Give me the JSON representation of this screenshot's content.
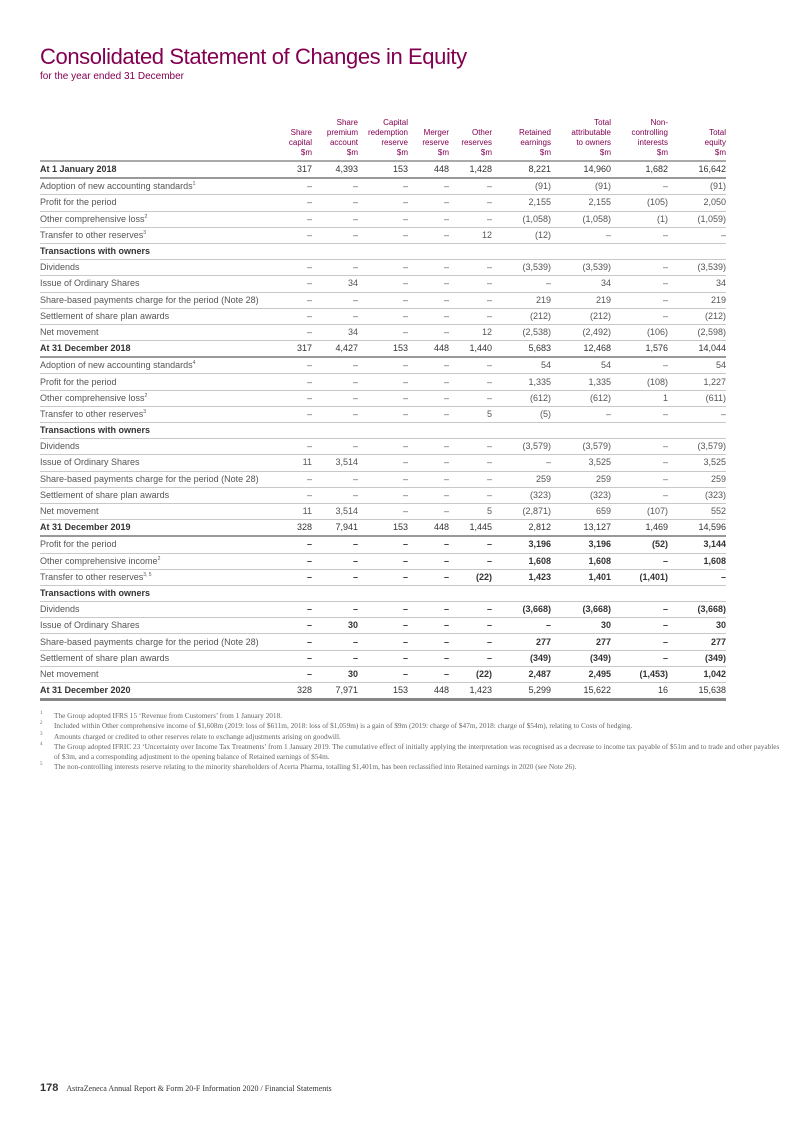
{
  "header": {
    "title": "Consolidated Statement of Changes in Equity",
    "subtitle": "for the year ended 31 December"
  },
  "columns": [
    [
      "Share",
      "capital",
      "$m"
    ],
    [
      "Share",
      "premium",
      "account",
      "$m"
    ],
    [
      "Capital",
      "redemption",
      "reserve",
      "$m"
    ],
    [
      "Merger",
      "reserve",
      "$m"
    ],
    [
      "Other",
      "reserves",
      "$m"
    ],
    [
      "Retained",
      "earnings",
      "$m"
    ],
    [
      "Total",
      "attributable",
      "to owners",
      "$m"
    ],
    [
      "Non-",
      "controlling",
      "interests",
      "$m"
    ],
    [
      "Total",
      "equity",
      "$m"
    ]
  ],
  "rows": [
    {
      "type": "total",
      "label": "At 1 January 2018",
      "sup": "",
      "values": [
        "317",
        "4,393",
        "153",
        "448",
        "1,428",
        "8,221",
        "14,960",
        "1,682",
        "16,642"
      ]
    },
    {
      "type": "row",
      "label": "Adoption of new accounting standards",
      "sup": "1",
      "values": [
        "–",
        "–",
        "–",
        "–",
        "–",
        "(91)",
        "(91)",
        "–",
        "(91)"
      ]
    },
    {
      "type": "row",
      "label": "Profit for the period",
      "sup": "",
      "values": [
        "–",
        "–",
        "–",
        "–",
        "–",
        "2,155",
        "2,155",
        "(105)",
        "2,050"
      ]
    },
    {
      "type": "row",
      "label": "Other comprehensive loss",
      "sup": "2",
      "values": [
        "–",
        "–",
        "–",
        "–",
        "–",
        "(1,058)",
        "(1,058)",
        "(1)",
        "(1,059)"
      ]
    },
    {
      "type": "row",
      "label": "Transfer to other reserves",
      "sup": "3",
      "values": [
        "–",
        "–",
        "–",
        "–",
        "12",
        "(12)",
        "–",
        "–",
        "–"
      ]
    },
    {
      "type": "section",
      "label": "Transactions with owners",
      "sup": "",
      "values": []
    },
    {
      "type": "row",
      "label": "Dividends",
      "sup": "",
      "values": [
        "–",
        "–",
        "–",
        "–",
        "–",
        "(3,539)",
        "(3,539)",
        "–",
        "(3,539)"
      ]
    },
    {
      "type": "row",
      "label": "Issue of Ordinary Shares",
      "sup": "",
      "values": [
        "–",
        "34",
        "–",
        "–",
        "–",
        "–",
        "34",
        "–",
        "34"
      ]
    },
    {
      "type": "row",
      "label": "Share-based payments charge for the period (Note 28)",
      "sup": "",
      "values": [
        "–",
        "–",
        "–",
        "–",
        "–",
        "219",
        "219",
        "–",
        "219"
      ]
    },
    {
      "type": "row",
      "label": "Settlement of share plan awards",
      "sup": "",
      "values": [
        "–",
        "–",
        "–",
        "–",
        "–",
        "(212)",
        "(212)",
        "–",
        "(212)"
      ]
    },
    {
      "type": "row",
      "label": "Net movement",
      "sup": "",
      "values": [
        "–",
        "34",
        "–",
        "–",
        "12",
        "(2,538)",
        "(2,492)",
        "(106)",
        "(2,598)"
      ]
    },
    {
      "type": "total",
      "label": "At 31 December 2018",
      "sup": "",
      "values": [
        "317",
        "4,427",
        "153",
        "448",
        "1,440",
        "5,683",
        "12,468",
        "1,576",
        "14,044"
      ]
    },
    {
      "type": "row",
      "label": "Adoption of new accounting standards",
      "sup": "4",
      "values": [
        "–",
        "–",
        "–",
        "–",
        "–",
        "54",
        "54",
        "–",
        "54"
      ]
    },
    {
      "type": "row",
      "label": "Profit for the period",
      "sup": "",
      "values": [
        "–",
        "–",
        "–",
        "–",
        "–",
        "1,335",
        "1,335",
        "(108)",
        "1,227"
      ]
    },
    {
      "type": "row",
      "label": "Other comprehensive loss",
      "sup": "2",
      "values": [
        "–",
        "–",
        "–",
        "–",
        "–",
        "(612)",
        "(612)",
        "1",
        "(611)"
      ]
    },
    {
      "type": "row",
      "label": "Transfer to other reserves",
      "sup": "3",
      "values": [
        "–",
        "–",
        "–",
        "–",
        "5",
        "(5)",
        "–",
        "–",
        "–"
      ]
    },
    {
      "type": "section",
      "label": "Transactions with owners",
      "sup": "",
      "values": []
    },
    {
      "type": "row",
      "label": "Dividends",
      "sup": "",
      "values": [
        "–",
        "–",
        "–",
        "–",
        "–",
        "(3,579)",
        "(3,579)",
        "–",
        "(3,579)"
      ]
    },
    {
      "type": "row",
      "label": "Issue of Ordinary Shares",
      "sup": "",
      "values": [
        "11",
        "3,514",
        "–",
        "–",
        "–",
        "–",
        "3,525",
        "–",
        "3,525"
      ]
    },
    {
      "type": "row",
      "label": "Share-based payments charge for the period (Note 28)",
      "sup": "",
      "values": [
        "–",
        "–",
        "–",
        "–",
        "–",
        "259",
        "259",
        "–",
        "259"
      ]
    },
    {
      "type": "row",
      "label": "Settlement of share plan awards",
      "sup": "",
      "values": [
        "–",
        "–",
        "–",
        "–",
        "–",
        "(323)",
        "(323)",
        "–",
        "(323)"
      ]
    },
    {
      "type": "row",
      "label": "Net movement",
      "sup": "",
      "values": [
        "11",
        "3,514",
        "–",
        "–",
        "5",
        "(2,871)",
        "659",
        "(107)",
        "552"
      ]
    },
    {
      "type": "total",
      "label": "At 31 December 2019",
      "sup": "",
      "values": [
        "328",
        "7,941",
        "153",
        "448",
        "1,445",
        "2,812",
        "13,127",
        "1,469",
        "14,596"
      ]
    },
    {
      "type": "bold",
      "label": "Profit for the period",
      "sup": "",
      "values": [
        "–",
        "–",
        "–",
        "–",
        "–",
        "3,196",
        "3,196",
        "(52)",
        "3,144"
      ]
    },
    {
      "type": "bold",
      "label": "Other comprehensive income",
      "sup": "2",
      "values": [
        "–",
        "–",
        "–",
        "–",
        "–",
        "1,608",
        "1,608",
        "–",
        "1,608"
      ]
    },
    {
      "type": "bold",
      "label": "Transfer to other reserves",
      "sup": "3, 5",
      "values": [
        "–",
        "–",
        "–",
        "–",
        "(22)",
        "1,423",
        "1,401",
        "(1,401)",
        "–"
      ]
    },
    {
      "type": "section",
      "label": "Transactions with owners",
      "sup": "",
      "values": []
    },
    {
      "type": "bold",
      "label": "Dividends",
      "sup": "",
      "values": [
        "–",
        "–",
        "–",
        "–",
        "–",
        "(3,668)",
        "(3,668)",
        "–",
        "(3,668)"
      ]
    },
    {
      "type": "bold",
      "label": "Issue of Ordinary Shares",
      "sup": "",
      "values": [
        "–",
        "30",
        "–",
        "–",
        "–",
        "–",
        "30",
        "–",
        "30"
      ]
    },
    {
      "type": "bold",
      "label": "Share-based payments charge for the period (Note 28)",
      "sup": "",
      "values": [
        "–",
        "–",
        "–",
        "–",
        "–",
        "277",
        "277",
        "–",
        "277"
      ]
    },
    {
      "type": "bold",
      "label": "Settlement of share plan awards",
      "sup": "",
      "values": [
        "–",
        "–",
        "–",
        "–",
        "–",
        "(349)",
        "(349)",
        "–",
        "(349)"
      ]
    },
    {
      "type": "bold",
      "label": "Net movement",
      "sup": "",
      "values": [
        "–",
        "30",
        "–",
        "–",
        "(22)",
        "2,487",
        "2,495",
        "(1,453)",
        "1,042"
      ]
    },
    {
      "type": "final",
      "label": "At 31 December 2020",
      "sup": "",
      "values": [
        "328",
        "7,971",
        "153",
        "448",
        "1,423",
        "5,299",
        "15,622",
        "16",
        "15,638"
      ]
    }
  ],
  "footnotes": [
    {
      "n": "1",
      "text": "The Group adopted IFRS 15 ‘Revenue from Customers’ from 1 January 2018."
    },
    {
      "n": "2",
      "text": "Included within Other comprehensive income of $1,608m (2019: loss of $611m, 2018: loss of $1,059m) is a gain of $9m (2019: charge of $47m, 2018: charge of $54m), relating to Costs of hedging."
    },
    {
      "n": "3",
      "text": "Amounts charged or credited to other reserves relate to exchange adjustments arising on goodwill."
    },
    {
      "n": "4",
      "text": "The Group adopted IFRIC 23 ‘Uncertainty over Income Tax Treatments’ from 1 January 2019. The cumulative effect of initially applying the interpretation was recognised as a decrease to income tax payable of $51m and to trade and other payables of $3m, and a corresponding adjustment to the opening balance of Retained earnings of $54m."
    },
    {
      "n": "5",
      "text": "The non-controlling interests reserve relating to the minority shareholders of Acerta Pharma, totalling $1,401m, has been reclassified into Retained earnings in 2020 (see Note 26)."
    }
  ],
  "footer": {
    "page": "178",
    "text": "AstraZeneca Annual Report & Form 20-F Information 2020 / Financial Statements"
  }
}
